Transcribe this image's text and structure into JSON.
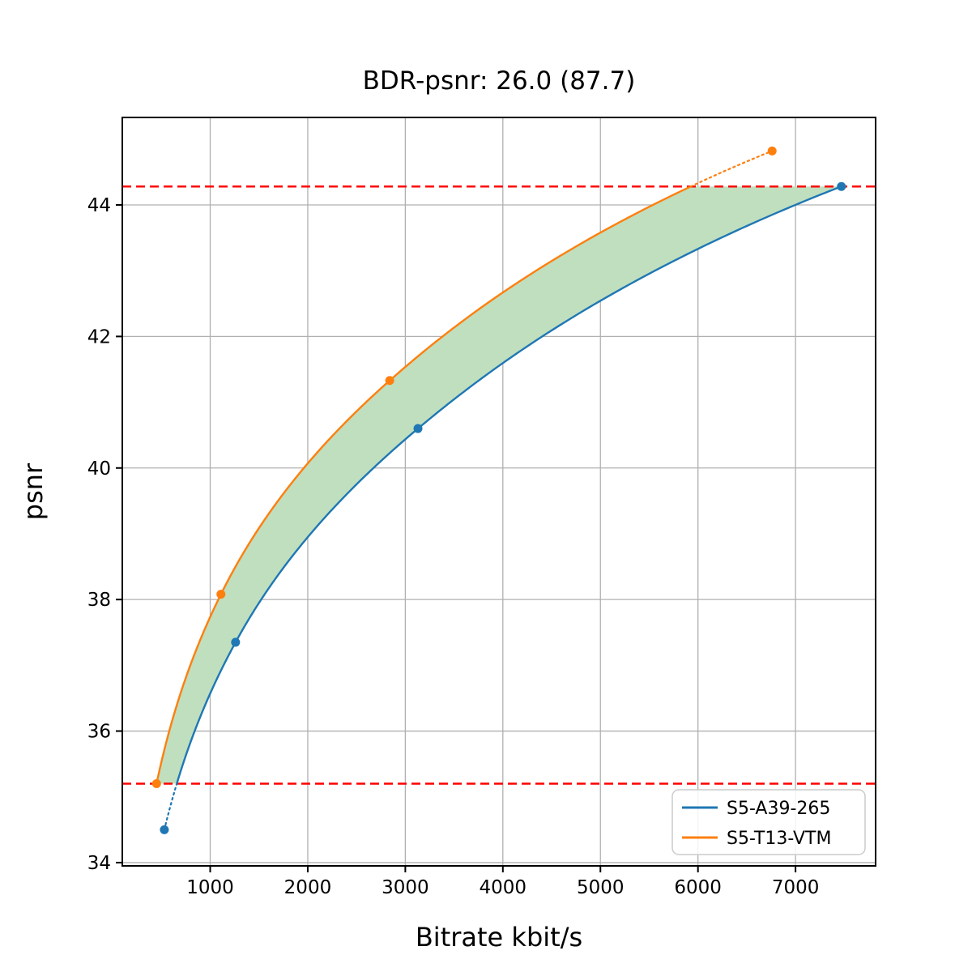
{
  "chart_data": {
    "type": "line",
    "title": "BDR-psnr: 26.0 (87.7)",
    "xlabel": "Bitrate kbit/s",
    "ylabel": "psnr",
    "xlim": [
      99,
      7821
    ],
    "ylim": [
      33.95,
      45.33
    ],
    "xticks": [
      1000,
      2000,
      3000,
      4000,
      5000,
      6000,
      7000
    ],
    "yticks": [
      34,
      36,
      38,
      40,
      42,
      44
    ],
    "grid": true,
    "grid_color": "#b0b0b0",
    "series": [
      {
        "name": "S5-A39-265",
        "color": "#1f77b4",
        "x": [
          530,
          1260,
          3130,
          7470
        ],
        "y": [
          34.5,
          37.35,
          40.6,
          44.28
        ],
        "dotted_region": "below_low_line"
      },
      {
        "name": "S5-T13-VTM",
        "color": "#ff7f0e",
        "x": [
          450,
          1110,
          2840,
          6760
        ],
        "y": [
          35.2,
          38.08,
          41.33,
          44.82
        ],
        "dotted_region": "above_high_line"
      }
    ],
    "hlines": [
      {
        "y": 44.28,
        "color": "#ff0000",
        "style": "dashed"
      },
      {
        "y": 35.2,
        "color": "#ff0000",
        "style": "dashed"
      }
    ],
    "fill_between": {
      "color": "#bfdfbf",
      "y_range": [
        35.2,
        44.28
      ]
    },
    "legend": {
      "position": "lower right",
      "entries": [
        "S5-A39-265",
        "S5-T13-VTM"
      ]
    }
  }
}
